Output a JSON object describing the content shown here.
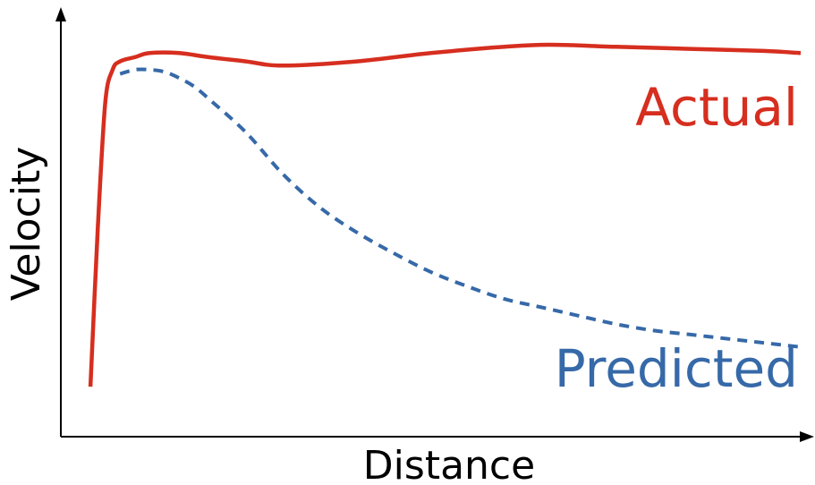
{
  "chart_data": {
    "type": "line",
    "title": "",
    "xlabel": "Distance",
    "ylabel": "Velocity",
    "grid": false,
    "axis_ticks": false,
    "xlim": [
      0,
      100
    ],
    "ylim": [
      0,
      100
    ],
    "series": [
      {
        "name": "Actual",
        "color": "#d62e1f",
        "style": "solid",
        "x": [
          4,
          5,
          6,
          7,
          8,
          10,
          12,
          16,
          20,
          25,
          30,
          40,
          50,
          60,
          66,
          75,
          85,
          95,
          100
        ],
        "y": [
          12,
          50,
          80,
          88,
          90,
          91,
          92,
          92,
          91,
          90,
          89,
          90,
          92,
          93.5,
          94,
          93.5,
          93,
          92.5,
          92
        ]
      },
      {
        "name": "Predicted",
        "color": "#3669a8",
        "style": "dashed",
        "x": [
          8,
          10,
          12,
          14,
          16,
          18,
          20,
          25,
          30,
          35,
          40,
          45,
          50,
          55,
          60,
          65,
          70,
          75,
          80,
          85,
          90,
          95,
          100
        ],
        "y": [
          87,
          88,
          88,
          87.5,
          86,
          84,
          81,
          73,
          63,
          55,
          49,
          44,
          39.5,
          36,
          33,
          31,
          29,
          27,
          25.5,
          24.5,
          23.5,
          22.5,
          21.5
        ]
      }
    ],
    "annotations": [
      {
        "text": "Actual",
        "color": "#d62e1f"
      },
      {
        "text": "Predicted",
        "color": "#3669a8"
      }
    ]
  }
}
